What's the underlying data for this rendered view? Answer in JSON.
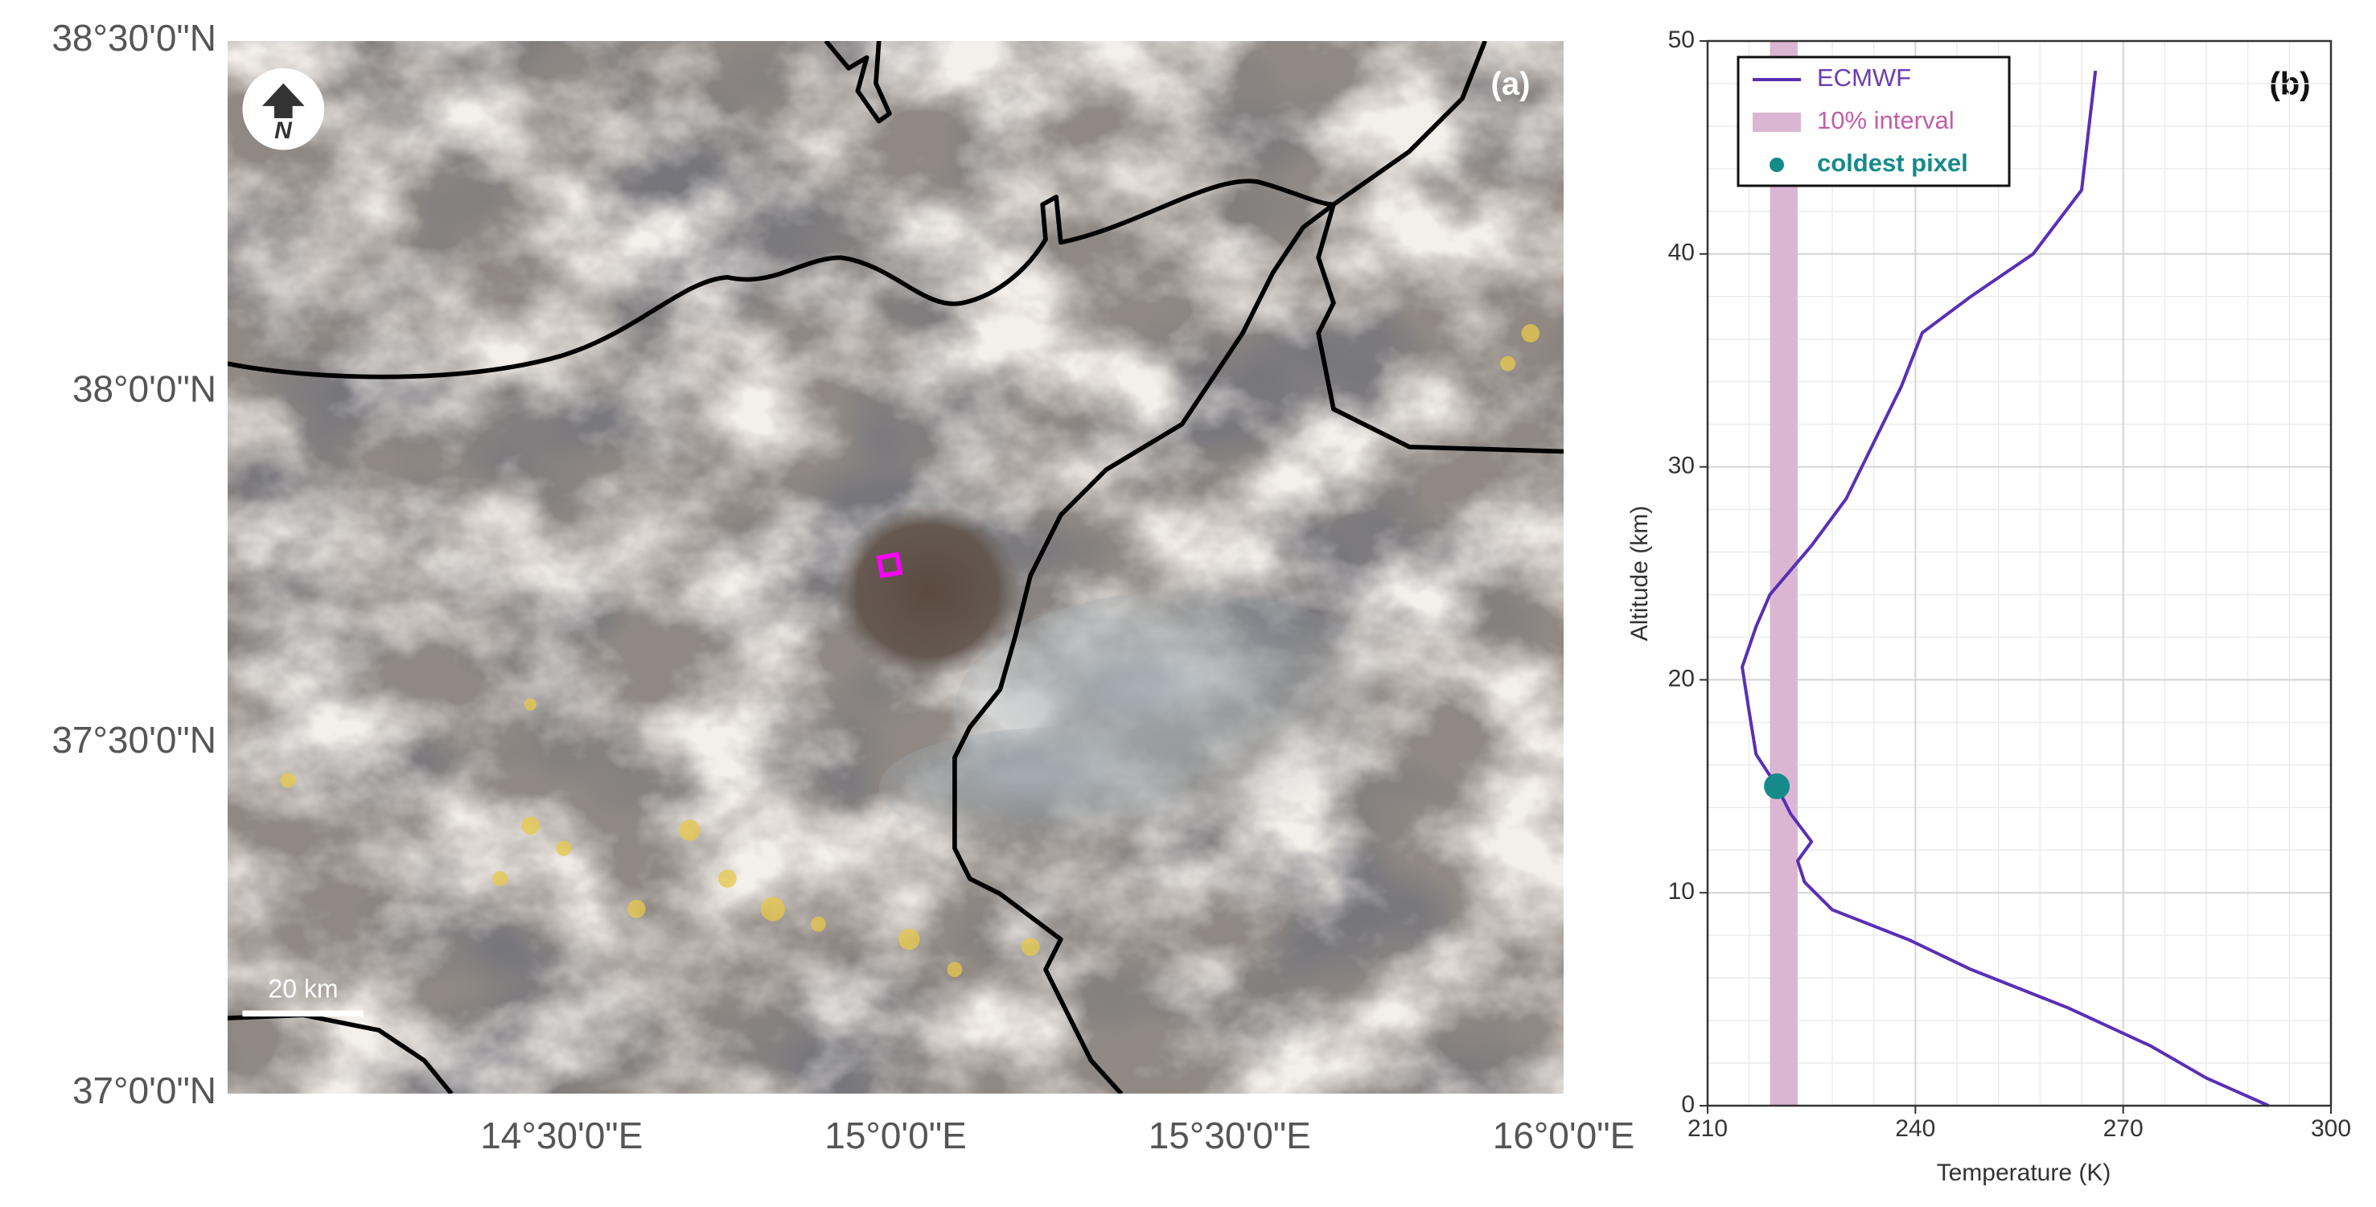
{
  "chart_data": [
    {
      "type": "map",
      "panel_label": "(a)",
      "north_label": "N",
      "scale_bar_label": "20 km",
      "xlim": [
        14,
        16
      ],
      "xticks": [
        {
          "value": 14.5,
          "label": "14°30'0\"E"
        },
        {
          "value": 15,
          "label": "15°0'0\"E"
        },
        {
          "value": 15.5,
          "label": "15°30'0\"E"
        },
        {
          "value": 16,
          "label": "16°0'0\"E"
        }
      ],
      "ylim": [
        37,
        38.5
      ],
      "yticks": [
        {
          "value": 37,
          "label": "37°0'0\"N"
        },
        {
          "value": 37.5,
          "label": "37°30'0\"N"
        },
        {
          "value": 38,
          "label": "38°0'0\"N"
        },
        {
          "value": 38.5,
          "label": "38°30'0\"N"
        }
      ]
    },
    {
      "type": "line",
      "panel_label": "(b)",
      "x_label": "Temperature (K)",
      "y_label": "Altitude (km)",
      "xlim": [
        210,
        300
      ],
      "xticks": [
        210,
        240,
        270,
        300
      ],
      "ylim": [
        0,
        50
      ],
      "yticks": [
        0,
        10,
        20,
        30,
        40,
        50
      ],
      "grid": true,
      "legend": "upper left",
      "series": [
        {
          "name": "ECMWF",
          "kind": "line",
          "color": "#5a2fb5",
          "x": [
            291,
            282,
            274,
            262,
            248,
            239,
            228,
            224,
            223,
            225,
            222,
            220,
            217,
            216,
            215,
            217,
            219,
            225,
            230,
            238,
            241,
            248,
            257,
            264,
            266
          ],
          "values": [
            0,
            1.3,
            2.8,
            4.6,
            6.4,
            7.8,
            9.2,
            10.5,
            11.5,
            12.4,
            13.7,
            15,
            16.5,
            18.5,
            20.6,
            22.5,
            24,
            26.3,
            28.5,
            33.8,
            36.3,
            38,
            40,
            43,
            48.6
          ]
        },
        {
          "name": "10% interval",
          "kind": "band",
          "color": "#dbb6d2",
          "x": [
            219,
            223
          ]
        },
        {
          "name": "coldest pixel",
          "kind": "scatter",
          "color": "#168a8a",
          "x": [
            220
          ],
          "values": [
            15
          ]
        }
      ]
    }
  ]
}
